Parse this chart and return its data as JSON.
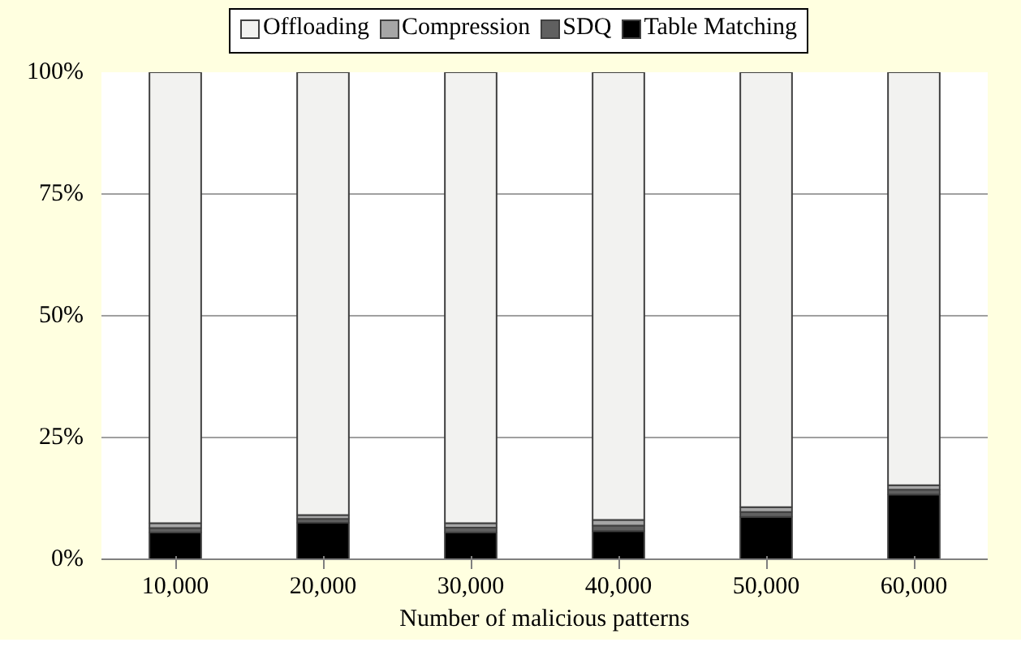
{
  "chart_data": {
    "type": "bar",
    "stacked": true,
    "xlabel": "Number of malicious patterns",
    "categories": [
      "10,000",
      "20,000",
      "30,000",
      "40,000",
      "50,000",
      "60,000"
    ],
    "series": [
      {
        "name": "Table Matching",
        "color": "#000000",
        "values": [
          5.5,
          7.5,
          5.5,
          5.8,
          8.7,
          13.3
        ]
      },
      {
        "name": "SDQ",
        "color": "#606060",
        "values": [
          0.9,
          0.8,
          1.0,
          1.1,
          1.0,
          1.0
        ]
      },
      {
        "name": "Compression",
        "color": "#a6a6a6",
        "values": [
          1.0,
          0.8,
          0.9,
          1.2,
          1.0,
          0.9
        ]
      },
      {
        "name": "Offloading",
        "color": "#f2f2f0",
        "values": [
          92.6,
          90.9,
          92.6,
          91.9,
          89.3,
          84.8
        ]
      }
    ],
    "ylim": [
      0,
      100
    ],
    "yticks": [
      {
        "value": 0,
        "label": "0%"
      },
      {
        "value": 25,
        "label": "25%"
      },
      {
        "value": 50,
        "label": "50%"
      },
      {
        "value": 75,
        "label": "75%"
      },
      {
        "value": 100,
        "label": "100%"
      }
    ],
    "grid": "y",
    "legend": "top"
  }
}
